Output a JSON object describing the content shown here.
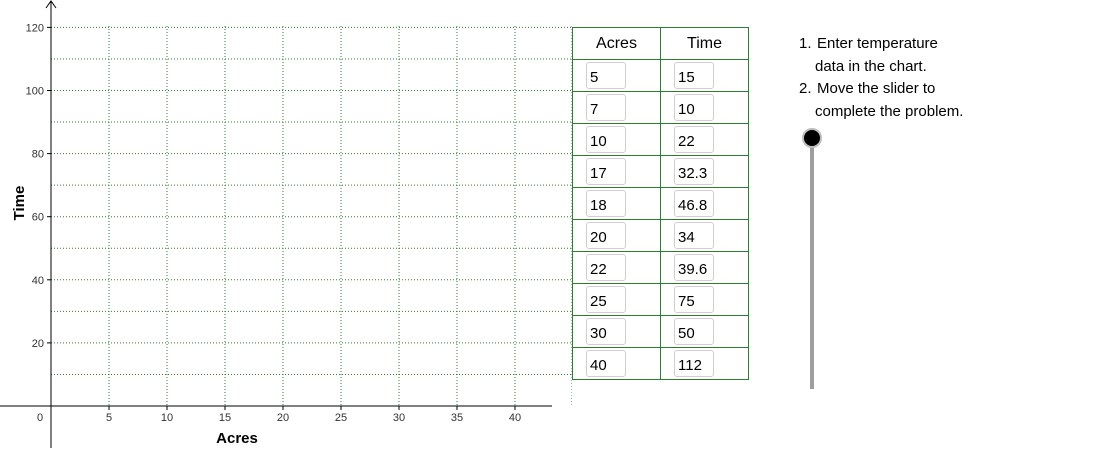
{
  "chart_data": {
    "type": "scatter",
    "xlabel": "Acres",
    "ylabel": "Time",
    "xlim": [
      0,
      43.5
    ],
    "ylim": [
      -7.5,
      120
    ],
    "x_ticks": [
      0,
      5,
      10,
      15,
      20,
      25,
      30,
      35,
      40
    ],
    "y_ticks": [
      20,
      40,
      60,
      80,
      100,
      120
    ],
    "x_minor_grid_step": 5,
    "y_minor_grid_step": 10,
    "grid": true,
    "grid_color": "#2e7d32",
    "points": []
  },
  "table": {
    "headers": [
      "Acres",
      "Time"
    ],
    "rows": [
      [
        "5",
        "15"
      ],
      [
        "7",
        "10"
      ],
      [
        "10",
        "22"
      ],
      [
        "17",
        "32.3"
      ],
      [
        "18",
        "46.8"
      ],
      [
        "20",
        "34"
      ],
      [
        "22",
        "39.6"
      ],
      [
        "25",
        "75"
      ],
      [
        "30",
        "50"
      ],
      [
        "40",
        "112"
      ]
    ]
  },
  "instructions": {
    "step1_num": "1.",
    "step1_line1": "Enter temperature",
    "step1_line2": "data in the chart.",
    "step2_num": "2.",
    "step2_line1": "Move the slider to",
    "step2_line2": "complete the problem."
  },
  "slider": {
    "value": 0,
    "track_color": "#9e9e9e",
    "thumb_color": "#000000"
  },
  "colors": {
    "grid": "#2e7d32",
    "table_border": "#2e7d32"
  }
}
